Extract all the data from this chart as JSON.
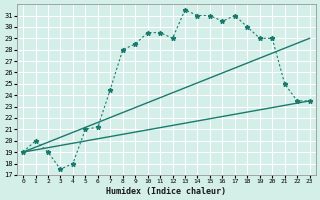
{
  "xlabel": "Humidex (Indice chaleur)",
  "ylabel": "",
  "bg_color": "#d4eee8",
  "grid_color": "#ffffff",
  "line_color": "#1a7a6e",
  "xlim": [
    -0.5,
    23.5
  ],
  "ylim": [
    17,
    32
  ],
  "yticks": [
    17,
    18,
    19,
    20,
    21,
    22,
    23,
    24,
    25,
    26,
    27,
    28,
    29,
    30,
    31
  ],
  "xticks": [
    0,
    1,
    2,
    3,
    4,
    5,
    6,
    7,
    8,
    9,
    10,
    11,
    12,
    13,
    14,
    15,
    16,
    17,
    18,
    19,
    20,
    21,
    22,
    23
  ],
  "humidex_x": [
    0,
    1,
    2,
    3,
    4,
    5,
    6,
    7,
    8,
    9,
    10,
    11,
    12,
    13,
    14,
    15,
    16,
    17,
    18,
    19,
    20,
    21,
    22,
    23
  ],
  "humidex_y": [
    19,
    20,
    19,
    17.5,
    18,
    21,
    21.2,
    24.5,
    28,
    28.5,
    29.5,
    29.5,
    29,
    31.5,
    31,
    31,
    30.5,
    31,
    30,
    29,
    29,
    25,
    23.5,
    23.5
  ],
  "line1_x": [
    0,
    23
  ],
  "line1_y": [
    19,
    23.5
  ],
  "line2_x": [
    0,
    23
  ],
  "line2_y": [
    19,
    29
  ]
}
